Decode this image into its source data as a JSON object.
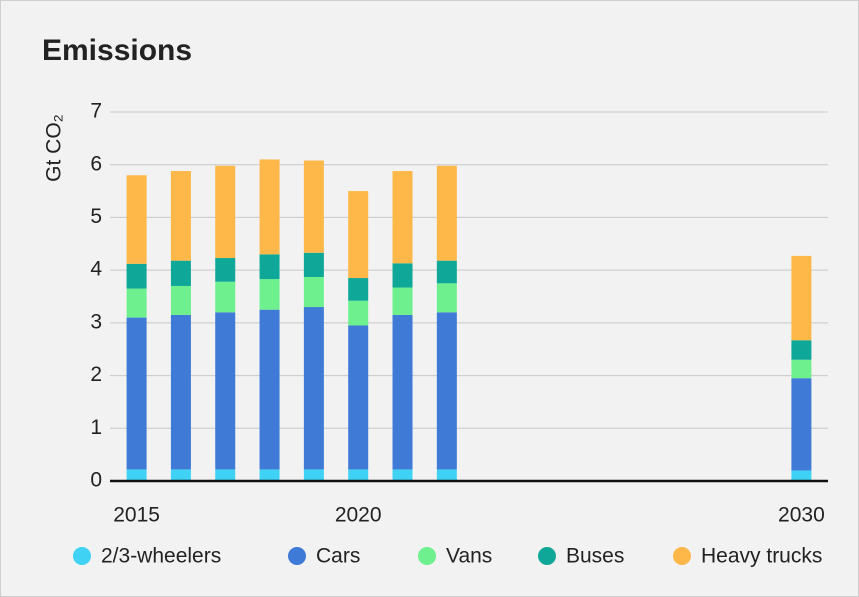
{
  "chart_data": {
    "type": "stacked-bar",
    "title": "Emissions",
    "y_label": "Gt CO₂",
    "x": [
      2015,
      2016,
      2017,
      2018,
      2019,
      2020,
      2021,
      2022,
      2030
    ],
    "xlim": [
      2014.4,
      2030.6
    ],
    "xticks": [
      2015,
      2020,
      2030
    ],
    "ylim": [
      0,
      7
    ],
    "yticks": [
      0,
      1,
      2,
      3,
      4,
      5,
      6,
      7
    ],
    "grid": true,
    "legend": "bottom",
    "series": [
      {
        "name": "2/3-wheelers",
        "color": "#3fd2f5",
        "values": [
          0.22,
          0.22,
          0.22,
          0.22,
          0.22,
          0.22,
          0.22,
          0.22,
          0.2
        ]
      },
      {
        "name": "Cars",
        "color": "#3f7ad6",
        "values": [
          2.88,
          2.93,
          2.98,
          3.03,
          3.08,
          2.73,
          2.93,
          2.98,
          1.75
        ]
      },
      {
        "name": "Vans",
        "color": "#6ef08e",
        "values": [
          0.55,
          0.55,
          0.58,
          0.58,
          0.57,
          0.47,
          0.52,
          0.55,
          0.35
        ]
      },
      {
        "name": "Buses",
        "color": "#0fa898",
        "values": [
          0.47,
          0.48,
          0.45,
          0.47,
          0.46,
          0.43,
          0.46,
          0.43,
          0.37
        ]
      },
      {
        "name": "Heavy trucks",
        "color": "#fdb849",
        "values": [
          1.68,
          1.7,
          1.75,
          1.8,
          1.75,
          1.65,
          1.75,
          1.8,
          1.6
        ]
      }
    ]
  }
}
